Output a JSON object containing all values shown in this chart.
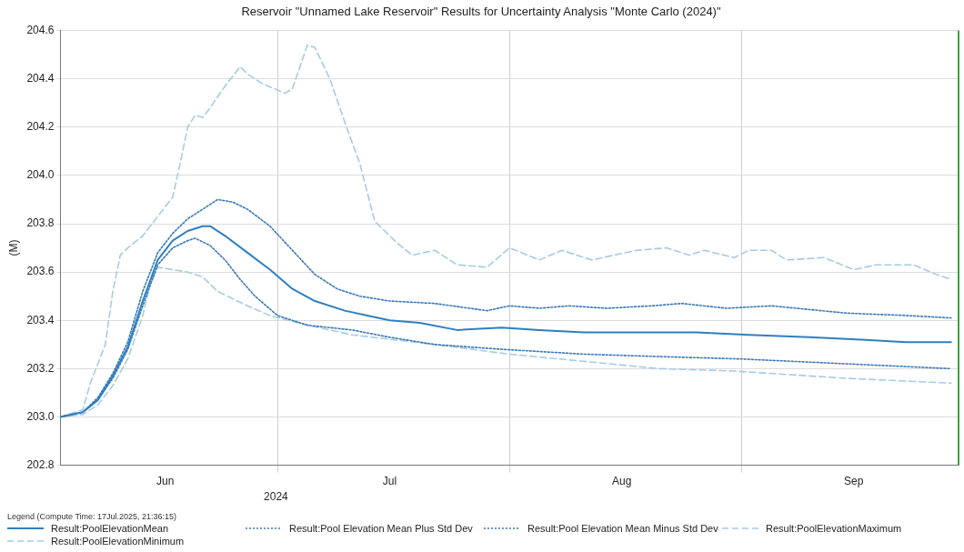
{
  "chart_data": {
    "type": "line",
    "title": "Reservoir \"Unnamed Lake Reservoir\" Results for Uncertainty Analysis \"Monte Carlo (2024)\"",
    "ylabel": "(M)",
    "legend_title": "Legend (Compute Time: 17Jul.2025, 21:36:15)",
    "legend": "bottom left",
    "grid": true,
    "marker": "none",
    "xlim": [
      "2024-06-02",
      "2024-09-30"
    ],
    "xticks": [
      {
        "value": "2024-06-16",
        "label": "Jun"
      },
      {
        "value": "2024-07-01",
        "label": null
      },
      {
        "value": "2024-07-16",
        "label": "Jul"
      },
      {
        "value": "2024-08-01",
        "label": null
      },
      {
        "value": "2024-08-16",
        "label": "Aug"
      },
      {
        "value": "2024-09-01",
        "label": null
      },
      {
        "value": "2024-09-16",
        "label": "Sep"
      }
    ],
    "ylim": [
      202.8,
      204.6
    ],
    "yticks": [
      202.8,
      {
        "value": 203,
        "label": "203.0"
      },
      203.2,
      203.4,
      203.6,
      203.8,
      {
        "value": 204,
        "label": "204.0"
      },
      204.2,
      204.4,
      204.6
    ],
    "annotations": [
      "2024"
    ],
    "ref_lines": [
      {
        "axis": "x",
        "value": "2024-09-30",
        "label": null,
        "color": "#3aa63a"
      }
    ],
    "series": [
      {
        "name": "Result:PoolElevationMean",
        "color": "#2f7fc1",
        "line_style": "solid",
        "x": [
          "2024-06-02",
          "2024-06-05",
          "2024-06-07",
          "2024-06-09",
          "2024-06-11",
          "2024-06-13",
          "2024-06-15",
          "2024-06-17",
          "2024-06-19",
          "2024-06-21",
          "2024-06-22",
          "2024-06-24",
          "2024-06-27",
          "2024-06-30",
          "2024-07-03",
          "2024-07-06",
          "2024-07-10",
          "2024-07-13",
          "2024-07-16",
          "2024-07-20",
          "2024-07-25",
          "2024-07-31",
          "2024-08-05",
          "2024-08-11",
          "2024-08-18",
          "2024-08-26",
          "2024-09-02",
          "2024-09-10",
          "2024-09-17",
          "2024-09-23",
          "2024-09-29"
        ],
        "values": [
          203.0,
          203.02,
          203.07,
          203.17,
          203.29,
          203.48,
          203.65,
          203.73,
          203.77,
          203.79,
          203.79,
          203.75,
          203.68,
          203.61,
          203.53,
          203.48,
          203.44,
          203.42,
          203.4,
          203.39,
          203.36,
          203.37,
          203.36,
          203.35,
          203.35,
          203.35,
          203.34,
          203.33,
          203.32,
          203.31,
          203.31
        ]
      },
      {
        "name": "Result:Pool Elevation Mean Plus Std Dev",
        "color": "#3a78b5",
        "line_style": "dotted",
        "x": [
          "2024-06-02",
          "2024-06-05",
          "2024-06-07",
          "2024-06-09",
          "2024-06-11",
          "2024-06-13",
          "2024-06-15",
          "2024-06-17",
          "2024-06-19",
          "2024-06-21",
          "2024-06-23",
          "2024-06-25",
          "2024-06-27",
          "2024-06-30",
          "2024-07-03",
          "2024-07-06",
          "2024-07-09",
          "2024-07-12",
          "2024-07-16",
          "2024-07-22",
          "2024-07-29",
          "2024-08-01",
          "2024-08-05",
          "2024-08-09",
          "2024-08-14",
          "2024-08-20",
          "2024-08-24",
          "2024-08-30",
          "2024-09-05",
          "2024-09-15",
          "2024-09-23",
          "2024-09-29"
        ],
        "values": [
          203.0,
          203.02,
          203.08,
          203.18,
          203.31,
          203.52,
          203.68,
          203.76,
          203.82,
          203.86,
          203.9,
          203.89,
          203.86,
          203.79,
          203.69,
          203.59,
          203.53,
          203.5,
          203.48,
          203.47,
          203.44,
          203.46,
          203.45,
          203.46,
          203.45,
          203.46,
          203.47,
          203.45,
          203.46,
          203.43,
          203.42,
          203.41
        ]
      },
      {
        "name": "Result:Pool Elevation Mean Minus Std Dev",
        "color": "#3a78b5",
        "line_style": "dotted",
        "x": [
          "2024-06-02",
          "2024-06-05",
          "2024-06-07",
          "2024-06-09",
          "2024-06-11",
          "2024-06-13",
          "2024-06-15",
          "2024-06-17",
          "2024-06-19",
          "2024-06-20",
          "2024-06-22",
          "2024-06-24",
          "2024-06-26",
          "2024-06-28",
          "2024-07-01",
          "2024-07-05",
          "2024-07-11",
          "2024-07-16",
          "2024-07-22",
          "2024-07-31",
          "2024-08-11",
          "2024-08-21",
          "2024-09-01",
          "2024-09-15",
          "2024-09-29"
        ],
        "values": [
          203.0,
          203.02,
          203.07,
          203.16,
          203.28,
          203.46,
          203.63,
          203.7,
          203.73,
          203.74,
          203.71,
          203.65,
          203.57,
          203.5,
          203.42,
          203.38,
          203.36,
          203.33,
          203.3,
          203.28,
          203.26,
          203.25,
          203.24,
          203.22,
          203.2
        ]
      },
      {
        "name": "Result:PoolElevationMaximum",
        "color": "#a6cbe3",
        "line_style": "dashed",
        "x": [
          "2024-06-02",
          "2024-06-05",
          "2024-06-06",
          "2024-06-08",
          "2024-06-09",
          "2024-06-10",
          "2024-06-11",
          "2024-06-13",
          "2024-06-15",
          "2024-06-17",
          "2024-06-18",
          "2024-06-19",
          "2024-06-20",
          "2024-06-21",
          "2024-06-22",
          "2024-06-24",
          "2024-06-26",
          "2024-06-27",
          "2024-06-29",
          "2024-07-02",
          "2024-07-03",
          "2024-07-05",
          "2024-07-06",
          "2024-07-08",
          "2024-07-10",
          "2024-07-12",
          "2024-07-14",
          "2024-07-17",
          "2024-07-19",
          "2024-07-22",
          "2024-07-25",
          "2024-07-29",
          "2024-08-01",
          "2024-08-05",
          "2024-08-08",
          "2024-08-12",
          "2024-08-18",
          "2024-08-22",
          "2024-08-25",
          "2024-08-27",
          "2024-08-31",
          "2024-09-02",
          "2024-09-05",
          "2024-09-07",
          "2024-09-12",
          "2024-09-16",
          "2024-09-19",
          "2024-09-24",
          "2024-09-27",
          "2024-09-29"
        ],
        "values": [
          203.0,
          203.03,
          203.14,
          203.3,
          203.52,
          203.67,
          203.7,
          203.75,
          203.83,
          203.91,
          204.05,
          204.2,
          204.25,
          204.24,
          204.28,
          204.37,
          204.45,
          204.42,
          204.38,
          204.34,
          204.36,
          204.54,
          204.53,
          204.4,
          204.22,
          204.05,
          203.81,
          203.72,
          203.67,
          203.69,
          203.63,
          203.62,
          203.7,
          203.65,
          203.69,
          203.65,
          203.69,
          203.7,
          203.67,
          203.69,
          203.66,
          203.69,
          203.69,
          203.65,
          203.66,
          203.61,
          203.63,
          203.63,
          203.59,
          203.57
        ]
      },
      {
        "name": "Result:PoolElevationMinimum",
        "color": "#a6cbe3",
        "line_style": "dashed",
        "x": [
          "2024-06-02",
          "2024-06-05",
          "2024-06-07",
          "2024-06-09",
          "2024-06-11",
          "2024-06-13",
          "2024-06-14",
          "2024-06-15",
          "2024-06-17",
          "2024-06-19",
          "2024-06-21",
          "2024-06-23",
          "2024-06-25",
          "2024-06-27",
          "2024-06-30",
          "2024-07-05",
          "2024-07-11",
          "2024-07-22",
          "2024-08-01",
          "2024-08-11",
          "2024-08-21",
          "2024-08-31",
          "2024-09-15",
          "2024-09-29"
        ],
        "values": [
          203.0,
          203.01,
          203.05,
          203.13,
          203.24,
          203.42,
          203.55,
          203.62,
          203.61,
          203.6,
          203.58,
          203.52,
          203.49,
          203.46,
          203.42,
          203.38,
          203.34,
          203.3,
          203.26,
          203.23,
          203.2,
          203.19,
          203.16,
          203.14
        ]
      }
    ]
  }
}
